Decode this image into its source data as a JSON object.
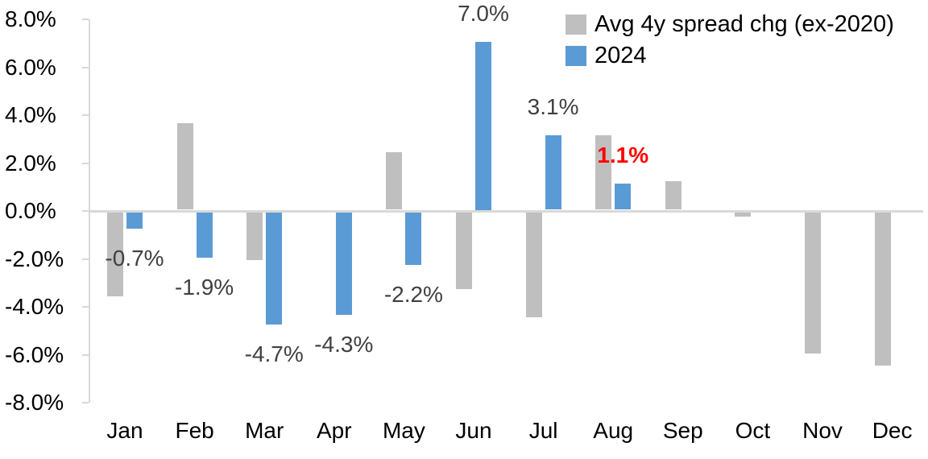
{
  "chart_data": {
    "type": "bar",
    "title": "",
    "categories": [
      "Jan",
      "Feb",
      "Mar",
      "Apr",
      "May",
      "Jun",
      "Jul",
      "Aug",
      "Sep",
      "Oct",
      "Nov",
      "Dec"
    ],
    "series": [
      {
        "name": "Avg 4y spread chg (ex-2020)",
        "color": "#bfbfbf",
        "values": [
          -3.5,
          3.6,
          -2.0,
          0.0,
          2.4,
          -3.2,
          -4.4,
          3.1,
          1.2,
          -0.2,
          -5.9,
          -6.4
        ]
      },
      {
        "name": "2024",
        "color": "#5b9bd5",
        "values": [
          -0.7,
          -1.9,
          -4.7,
          -4.3,
          -2.2,
          7.0,
          3.1,
          1.1,
          null,
          null,
          null,
          null
        ]
      }
    ],
    "value_labels": [
      {
        "category": "Jan",
        "text": "-0.7%",
        "color": "#404040",
        "bold": false
      },
      {
        "category": "Feb",
        "text": "-1.9%",
        "color": "#404040",
        "bold": false
      },
      {
        "category": "Mar",
        "text": "-4.7%",
        "color": "#404040",
        "bold": false
      },
      {
        "category": "Apr",
        "text": "-4.3%",
        "color": "#404040",
        "bold": false
      },
      {
        "category": "May",
        "text": "-2.2%",
        "color": "#404040",
        "bold": false
      },
      {
        "category": "Jun",
        "text": "7.0%",
        "color": "#404040",
        "bold": false
      },
      {
        "category": "Jul",
        "text": "3.1%",
        "color": "#404040",
        "bold": false
      },
      {
        "category": "Aug",
        "text": "1.1%",
        "color": "#ff0000",
        "bold": true
      }
    ],
    "ylim": [
      -8,
      8
    ],
    "ytick_step": 2,
    "ytick_labels": [
      "8.0%",
      "6.0%",
      "4.0%",
      "2.0%",
      "0.0%",
      "-2.0%",
      "-4.0%",
      "-6.0%",
      "-8.0%"
    ],
    "grid": false,
    "legend_position": "top-right",
    "colors": {
      "axis_line": "#d9d9d9",
      "axis_text": "#000000",
      "data_label_default": "#404040",
      "data_label_highlight": "#ff0000"
    }
  }
}
